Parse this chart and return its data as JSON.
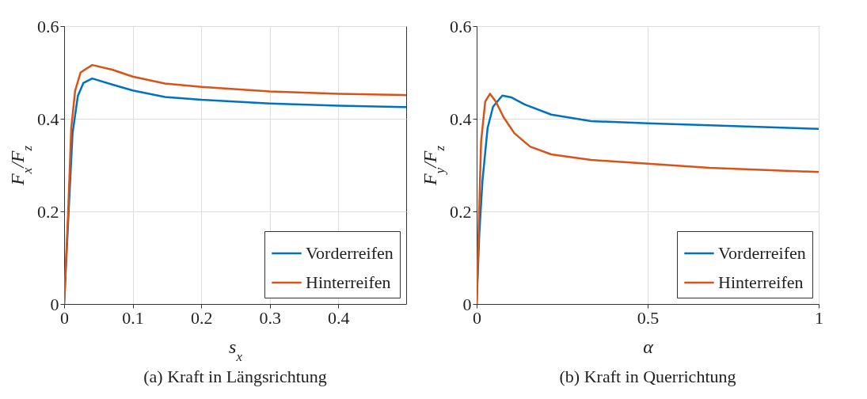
{
  "chart_data": [
    {
      "type": "line",
      "xlabel": "s$_{x}$",
      "ylabel": "F$_{x}$/F$_{z}$",
      "annotations": [
        "(a) Kraft in Längsrichtung"
      ],
      "xlim": [
        0,
        0.499
      ],
      "xticks": [
        0,
        0.1,
        0.2,
        0.3,
        0.4
      ],
      "ylim": [
        0,
        0.6
      ],
      "yticks": [
        0,
        0.2,
        0.4,
        0.6
      ],
      "grid": true,
      "legend": "bottom right",
      "series": [
        {
          "name": "Vorderreifen",
          "color": "#0072bd",
          "x": [
            0,
            0.0065,
            0.0123,
            0.02,
            0.028,
            0.041,
            0.07,
            0.1,
            0.147,
            0.2,
            0.3,
            0.4,
            0.499
          ],
          "values": [
            0,
            0.197,
            0.369,
            0.449,
            0.477,
            0.487,
            0.474,
            0.461,
            0.447,
            0.441,
            0.433,
            0.428,
            0.425
          ]
        },
        {
          "name": "Hinterreifen",
          "color": "#d95319",
          "x": [
            0,
            0.0058,
            0.0104,
            0.016,
            0.024,
            0.041,
            0.07,
            0.1,
            0.147,
            0.2,
            0.3,
            0.4,
            0.499
          ],
          "values": [
            0,
            0.197,
            0.38,
            0.46,
            0.5,
            0.516,
            0.506,
            0.491,
            0.476,
            0.469,
            0.459,
            0.454,
            0.451
          ]
        }
      ]
    },
    {
      "type": "line",
      "xlabel": "α",
      "ylabel": "F$_{y}$/F$_{z}$",
      "annotations": [
        "(b) Kraft in Querrichtung"
      ],
      "xlim": [
        0,
        1
      ],
      "xticks": [
        0,
        0.5,
        1
      ],
      "ylim": [
        0,
        0.6
      ],
      "yticks": [
        0,
        0.2,
        0.4,
        0.6
      ],
      "grid": true,
      "legend": "bottom right",
      "series": [
        {
          "name": "Vorderreifen",
          "color": "#0072bd",
          "x": [
            0,
            0.0077,
            0.017,
            0.032,
            0.048,
            0.075,
            0.102,
            0.14,
            0.218,
            0.334,
            0.5,
            0.681,
            1
          ],
          "values": [
            0,
            0.151,
            0.266,
            0.38,
            0.426,
            0.45,
            0.446,
            0.431,
            0.409,
            0.395,
            0.39,
            0.386,
            0.378
          ]
        },
        {
          "name": "Hinterreifen",
          "color": "#d95319",
          "x": [
            0,
            0.0054,
            0.013,
            0.025,
            0.039,
            0.056,
            0.079,
            0.11,
            0.156,
            0.218,
            0.334,
            0.5,
            0.681,
            1
          ],
          "values": [
            0,
            0.151,
            0.351,
            0.437,
            0.454,
            0.437,
            0.403,
            0.369,
            0.34,
            0.323,
            0.311,
            0.303,
            0.294,
            0.285
          ]
        }
      ]
    }
  ]
}
